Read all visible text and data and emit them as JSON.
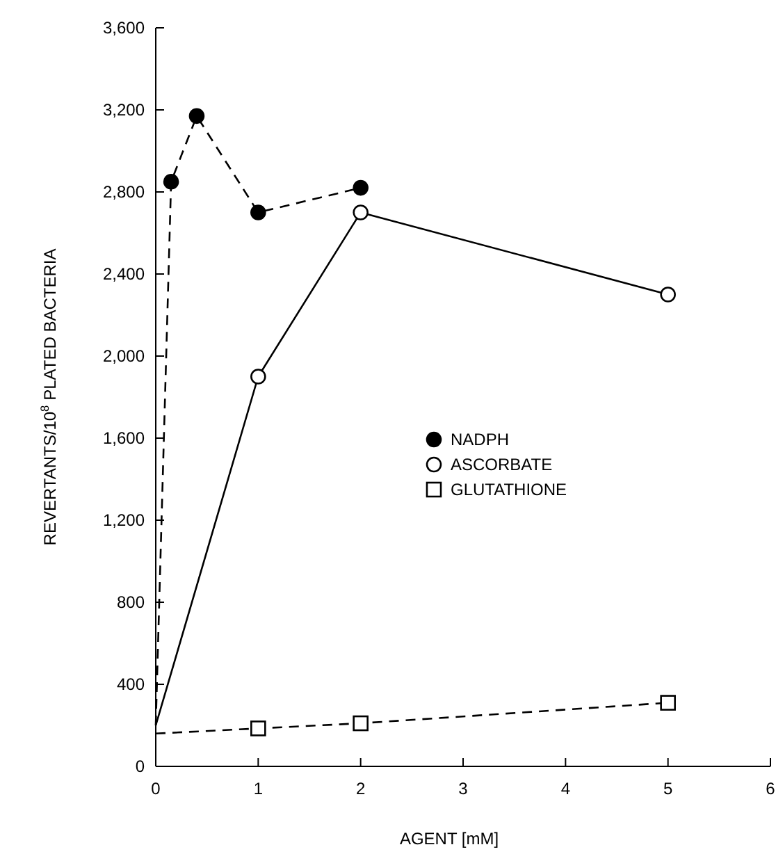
{
  "chart_data": {
    "type": "line",
    "xlabel": "AGENT [mM]",
    "ylabel": "REVERTANTS/10$^{8}$ PLATED BACTERIA",
    "xlim": [
      0,
      6
    ],
    "xticks": [
      0,
      1,
      2,
      3,
      4,
      5,
      6
    ],
    "ylim": [
      0,
      3600
    ],
    "yticks": [
      {
        "value": 0,
        "label": "0"
      },
      {
        "value": 400,
        "label": "400"
      },
      {
        "value": 800,
        "label": "800"
      },
      {
        "value": 1200,
        "label": "1,200"
      },
      {
        "value": 1600,
        "label": "1,600"
      },
      {
        "value": 2000,
        "label": "2,000"
      },
      {
        "value": 2400,
        "label": "2,400"
      },
      {
        "value": 2800,
        "label": "2,800"
      },
      {
        "value": 3200,
        "label": "3,200"
      },
      {
        "value": 3600,
        "label": "3,600"
      }
    ],
    "grid": false,
    "legend": "right",
    "series": [
      {
        "name": "NADPH",
        "color": "#000000",
        "x": [
          0,
          0.15,
          0.4,
          1,
          2
        ],
        "values": [
          200,
          2850,
          3170,
          2700,
          2820
        ],
        "marker": "circle",
        "line_style": "dashed"
      },
      {
        "name": "ASCORBATE",
        "color": "#000000",
        "x": [
          0,
          1,
          2,
          5
        ],
        "values": [
          200,
          1900,
          2700,
          2300
        ],
        "marker": "circle",
        "line_style": "solid"
      },
      {
        "name": "GLUTATHIONE",
        "color": "#000000",
        "x": [
          0,
          1,
          2,
          5
        ],
        "values": [
          160,
          185,
          210,
          310
        ],
        "marker": "square",
        "line_style": "dashed"
      }
    ]
  }
}
